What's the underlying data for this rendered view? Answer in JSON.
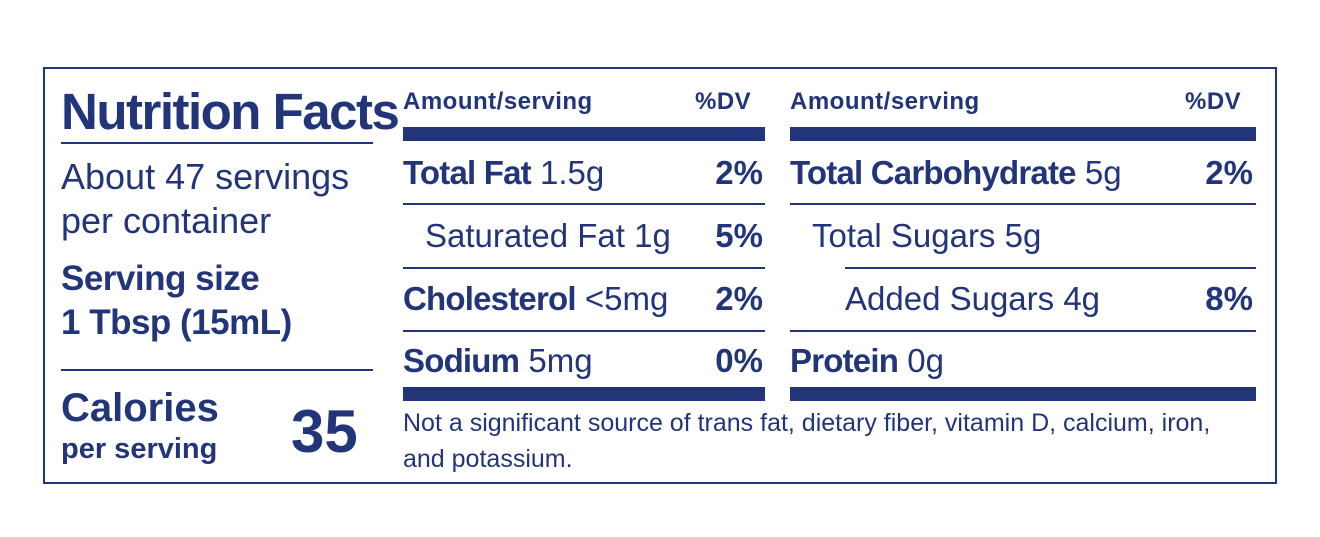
{
  "title": "Nutrition Facts",
  "servings_line1": "About 47 servings",
  "servings_line2": "per container",
  "serving_size_label": "Serving size",
  "serving_size_value": "1 Tbsp (15mL)",
  "calories_label": "Calories",
  "calories_sub": "per serving",
  "calories_value": "35",
  "left_header": {
    "amount": "Amount/serving",
    "dv": "%DV"
  },
  "right_header": {
    "amount": "Amount/serving",
    "dv": "%DV"
  },
  "left_rows": [
    {
      "name": "Total Fat",
      "amount": "1.5g",
      "dv": "2%"
    },
    {
      "name": "Saturated Fat",
      "amount": "1g",
      "dv": "5%"
    },
    {
      "name": "Cholesterol",
      "amount": "<5mg",
      "dv": "2%"
    },
    {
      "name": "Sodium",
      "amount": "5mg",
      "dv": "0%"
    }
  ],
  "right_rows": [
    {
      "name": "Total Carbohydrate",
      "amount": "5g",
      "dv": "2%"
    },
    {
      "name": "Total Sugars",
      "amount": "5g",
      "dv": ""
    },
    {
      "name": "Added Sugars",
      "amount": "4g",
      "dv": "8%"
    },
    {
      "name": "Protein",
      "amount": "0g",
      "dv": ""
    }
  ],
  "footnote": "Not a significant source of trans fat, dietary fiber, vitamin D, calcium, iron, and potassium.",
  "colors": {
    "ink": "#22357a",
    "background": "#ffffff"
  }
}
